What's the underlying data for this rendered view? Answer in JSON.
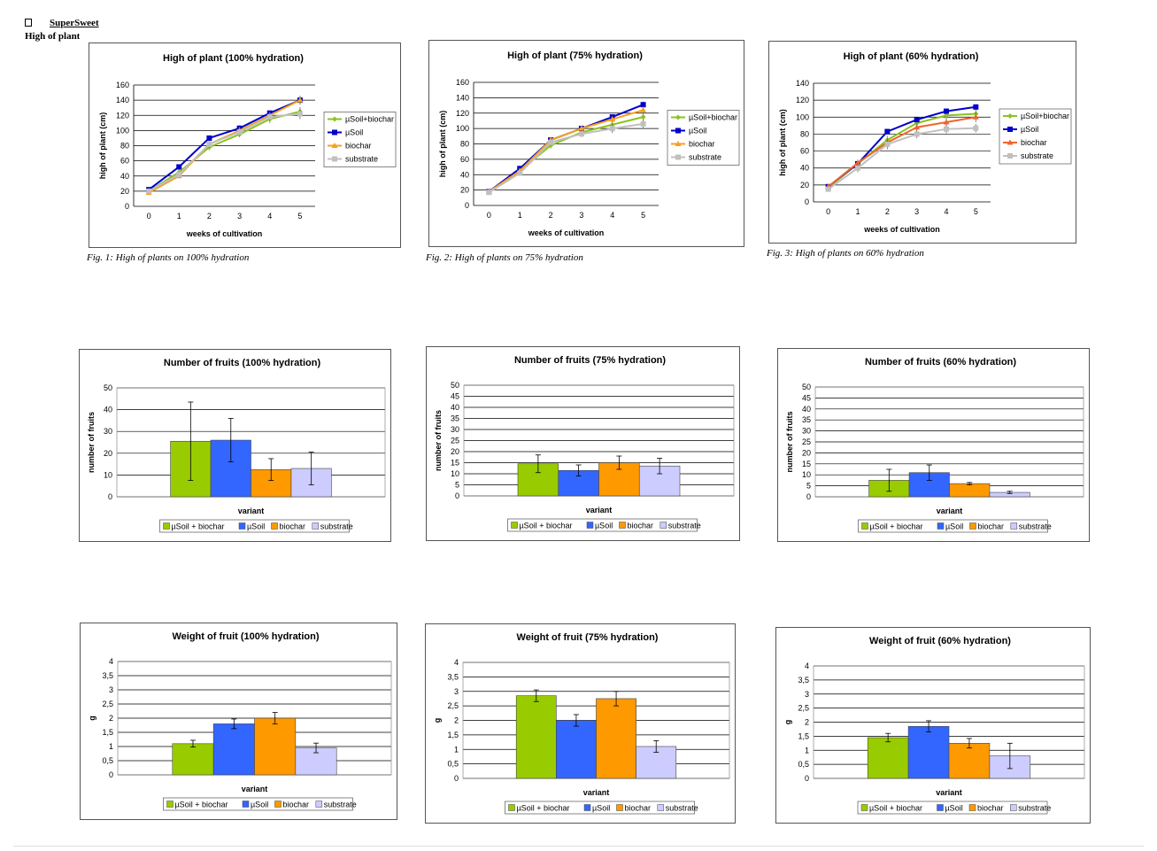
{
  "header": {
    "brand": "SuperSweet",
    "subtitle": "High of plant"
  },
  "colors": {
    "usoil_biochar": "#8bc31f",
    "usoil": "#0000c8",
    "biochar": "#f5a01e",
    "substrate": "#c0c0c0",
    "bar_usoil_biochar": "#99cc00",
    "bar_usoil": "#3366ff",
    "bar_biochar": "#ff9900",
    "bar_substrate": "#ccccff"
  },
  "charts": [
    {
      "type": "line",
      "title": "High of plant (100% hydration)",
      "xlabel": "weeks of cultivation",
      "ylabel": "high of plant (cm)",
      "categories": [
        "0",
        "1",
        "2",
        "3",
        "4",
        "5"
      ],
      "ylim": [
        0,
        160
      ],
      "ytick_step": 20,
      "y_tick_labels": [
        "0",
        "20",
        "40",
        "60",
        "80",
        "100",
        "120",
        "140",
        "160"
      ],
      "caption": "Fig. 1: High of plants on 100% hydration",
      "series": [
        {
          "name": "µSoil+biochar",
          "color": "#8bc31f",
          "marker": "diamond",
          "values": [
            20,
            45,
            78,
            95,
            115,
            125
          ],
          "err": [
            2,
            3,
            4,
            4,
            5,
            6
          ]
        },
        {
          "name": "µSoil",
          "color": "#0000c8",
          "marker": "square",
          "values": [
            22,
            52,
            90,
            103,
            123,
            140
          ],
          "err": [
            2,
            3,
            3,
            4,
            3,
            5
          ]
        },
        {
          "name": "biochar",
          "color": "#f5a01e",
          "marker": "triangle",
          "values": [
            18,
            40,
            82,
            100,
            120,
            140
          ],
          "err": [
            2,
            3,
            4,
            5,
            4,
            6
          ]
        },
        {
          "name": "substrate",
          "color": "#c0c0c0",
          "marker": "square",
          "values": [
            20,
            42,
            82,
            98,
            118,
            122
          ],
          "err": [
            2,
            3,
            4,
            4,
            5,
            7
          ]
        }
      ]
    },
    {
      "type": "line",
      "title": "High of plant (75% hydration)",
      "xlabel": "weeks of cultivation",
      "ylabel": "high of plant (cm)",
      "categories": [
        "0",
        "1",
        "2",
        "3",
        "4",
        "5"
      ],
      "ylim": [
        0,
        160
      ],
      "ytick_step": 20,
      "y_tick_labels": [
        "0",
        "20",
        "40",
        "60",
        "80",
        "100",
        "120",
        "140",
        "160"
      ],
      "caption": "Fig. 2: High of plants on 75% hydration",
      "series": [
        {
          "name": "µSoil+biochar",
          "color": "#8bc31f",
          "marker": "diamond",
          "values": [
            18,
            45,
            78,
            95,
            105,
            115
          ],
          "err": [
            2,
            3,
            4,
            4,
            5,
            6
          ]
        },
        {
          "name": "µSoil",
          "color": "#0000c8",
          "marker": "square",
          "values": [
            18,
            48,
            85,
            100,
            115,
            131
          ],
          "err": [
            2,
            3,
            3,
            4,
            3,
            4
          ]
        },
        {
          "name": "biochar",
          "color": "#f5a01e",
          "marker": "triangle",
          "values": [
            18,
            45,
            85,
            100,
            112,
            124
          ],
          "err": [
            2,
            3,
            4,
            4,
            4,
            5
          ]
        },
        {
          "name": "substrate",
          "color": "#c0c0c0",
          "marker": "square",
          "values": [
            17,
            42,
            82,
            93,
            100,
            106
          ],
          "err": [
            2,
            3,
            4,
            4,
            6,
            6
          ]
        }
      ]
    },
    {
      "type": "line",
      "title": "High of plant (60% hydration)",
      "xlabel": "weeks of cultivation",
      "ylabel": "high of plant (cm)",
      "categories": [
        "0",
        "1",
        "2",
        "3",
        "4",
        "5"
      ],
      "ylim": [
        0,
        140
      ],
      "ytick_step": 20,
      "y_tick_labels": [
        "0",
        "20",
        "40",
        "60",
        "80",
        "100",
        "120",
        "140"
      ],
      "caption": "Fig. 3: High of plants on 60% hydration",
      "series": [
        {
          "name": "µSoil+biochar",
          "color": "#8bc31f",
          "marker": "diamond",
          "values": [
            17,
            45,
            73,
            93,
            102,
            104
          ],
          "err": [
            2,
            4,
            5,
            5,
            5,
            5
          ]
        },
        {
          "name": "µSoil",
          "color": "#0000c8",
          "marker": "square",
          "values": [
            18,
            45,
            83,
            97,
            107,
            112
          ],
          "err": [
            2,
            3,
            3,
            3,
            3,
            3
          ]
        },
        {
          "name": "biochar",
          "color": "#f0642d",
          "marker": "triangle",
          "values": [
            18,
            46,
            70,
            88,
            94,
            100
          ],
          "err": [
            2,
            4,
            5,
            5,
            6,
            6
          ]
        },
        {
          "name": "substrate",
          "color": "#c0c0c0",
          "marker": "square",
          "values": [
            15,
            40,
            68,
            80,
            86,
            87
          ],
          "err": [
            2,
            5,
            6,
            5,
            5,
            5
          ]
        }
      ]
    },
    {
      "type": "bar",
      "title": "Number of fruits (100% hydration)",
      "xlabel": "variant",
      "ylabel": "number of fruits",
      "ylim": [
        0,
        50
      ],
      "ytick_step": 10,
      "y_tick_labels": [
        "0",
        "10",
        "20",
        "30",
        "40",
        "50"
      ],
      "series": [
        {
          "name": "µSoil + biochar",
          "color": "#99cc00",
          "value": 25.5,
          "err": 18
        },
        {
          "name": "µSoil",
          "color": "#3366ff",
          "value": 26,
          "err": 10
        },
        {
          "name": "biochar",
          "color": "#ff9900",
          "value": 12.5,
          "err": 5
        },
        {
          "name": "substrate",
          "color": "#ccccff",
          "value": 13,
          "err": 7.5
        }
      ]
    },
    {
      "type": "bar",
      "title": "Number of fruits (75% hydration)",
      "xlabel": "variant",
      "ylabel": "number of fruits",
      "ylim": [
        0,
        50
      ],
      "ytick_step": 5,
      "y_tick_labels": [
        "0",
        "5",
        "10",
        "15",
        "20",
        "25",
        "30",
        "35",
        "40",
        "45",
        "50"
      ],
      "series": [
        {
          "name": "µSoil + biochar",
          "color": "#99cc00",
          "value": 14.5,
          "err": 4
        },
        {
          "name": "µSoil",
          "color": "#3366ff",
          "value": 11.5,
          "err": 2.5
        },
        {
          "name": "biochar",
          "color": "#ff9900",
          "value": 15,
          "err": 3
        },
        {
          "name": "substrate",
          "color": "#ccccff",
          "value": 13.5,
          "err": 3.5
        }
      ]
    },
    {
      "type": "bar",
      "title": "Number of fruits (60% hydration)",
      "xlabel": "variant",
      "ylabel": "number of fruits",
      "ylim": [
        0,
        50
      ],
      "ytick_step": 5,
      "y_tick_labels": [
        "0",
        "5",
        "10",
        "15",
        "20",
        "25",
        "30",
        "35",
        "40",
        "45",
        "50"
      ],
      "series": [
        {
          "name": "µSoil + biochar",
          "color": "#99cc00",
          "value": 7.5,
          "err": 5
        },
        {
          "name": "µSoil",
          "color": "#3366ff",
          "value": 11,
          "err": 3.5
        },
        {
          "name": "biochar",
          "color": "#ff9900",
          "value": 6,
          "err": 0.5
        },
        {
          "name": "substrate",
          "color": "#ccccff",
          "value": 2,
          "err": 0.5
        }
      ]
    },
    {
      "type": "bar",
      "title": "Weight of fruit (100% hydration)",
      "xlabel": "variant",
      "ylabel": "g",
      "ylim": [
        0,
        4
      ],
      "ytick_step": 0.5,
      "y_tick_labels": [
        "0",
        "0,5",
        "1",
        "1,5",
        "2",
        "2,5",
        "3",
        "3,5",
        "4"
      ],
      "series": [
        {
          "name": "µSoil + biochar",
          "color": "#99cc00",
          "value": 1.1,
          "err": 0.12
        },
        {
          "name": "µSoil",
          "color": "#3366ff",
          "value": 1.8,
          "err": 0.17
        },
        {
          "name": "biochar",
          "color": "#ff9900",
          "value": 2.0,
          "err": 0.2
        },
        {
          "name": "substrate",
          "color": "#ccccff",
          "value": 0.95,
          "err": 0.17
        }
      ]
    },
    {
      "type": "bar",
      "title": "Weight of fruit (75% hydration)",
      "xlabel": "variant",
      "ylabel": "g",
      "ylim": [
        0,
        4
      ],
      "ytick_step": 0.5,
      "y_tick_labels": [
        "0",
        "0,5",
        "1",
        "1,5",
        "2",
        "2,5",
        "3",
        "3,5",
        "4"
      ],
      "series": [
        {
          "name": "µSoil + biochar",
          "color": "#99cc00",
          "value": 2.85,
          "err": 0.2
        },
        {
          "name": "µSoil",
          "color": "#3366ff",
          "value": 2.0,
          "err": 0.2
        },
        {
          "name": "biochar",
          "color": "#ff9900",
          "value": 2.75,
          "err": 0.25
        },
        {
          "name": "substrate",
          "color": "#ccccff",
          "value": 1.1,
          "err": 0.2
        }
      ]
    },
    {
      "type": "bar",
      "title": "Weight of fruit (60% hydration)",
      "xlabel": "variant",
      "ylabel": "g",
      "ylim": [
        0,
        4
      ],
      "ytick_step": 0.5,
      "y_tick_labels": [
        "0",
        "0,5",
        "1",
        "1,5",
        "2",
        "2,5",
        "3",
        "3,5",
        "4"
      ],
      "series": [
        {
          "name": "µSoil + biochar",
          "color": "#99cc00",
          "value": 1.45,
          "err": 0.15
        },
        {
          "name": "µSoil",
          "color": "#3366ff",
          "value": 1.85,
          "err": 0.2
        },
        {
          "name": "biochar",
          "color": "#ff9900",
          "value": 1.25,
          "err": 0.17
        },
        {
          "name": "substrate",
          "color": "#ccccff",
          "value": 0.8,
          "err": 0.45
        }
      ]
    }
  ]
}
